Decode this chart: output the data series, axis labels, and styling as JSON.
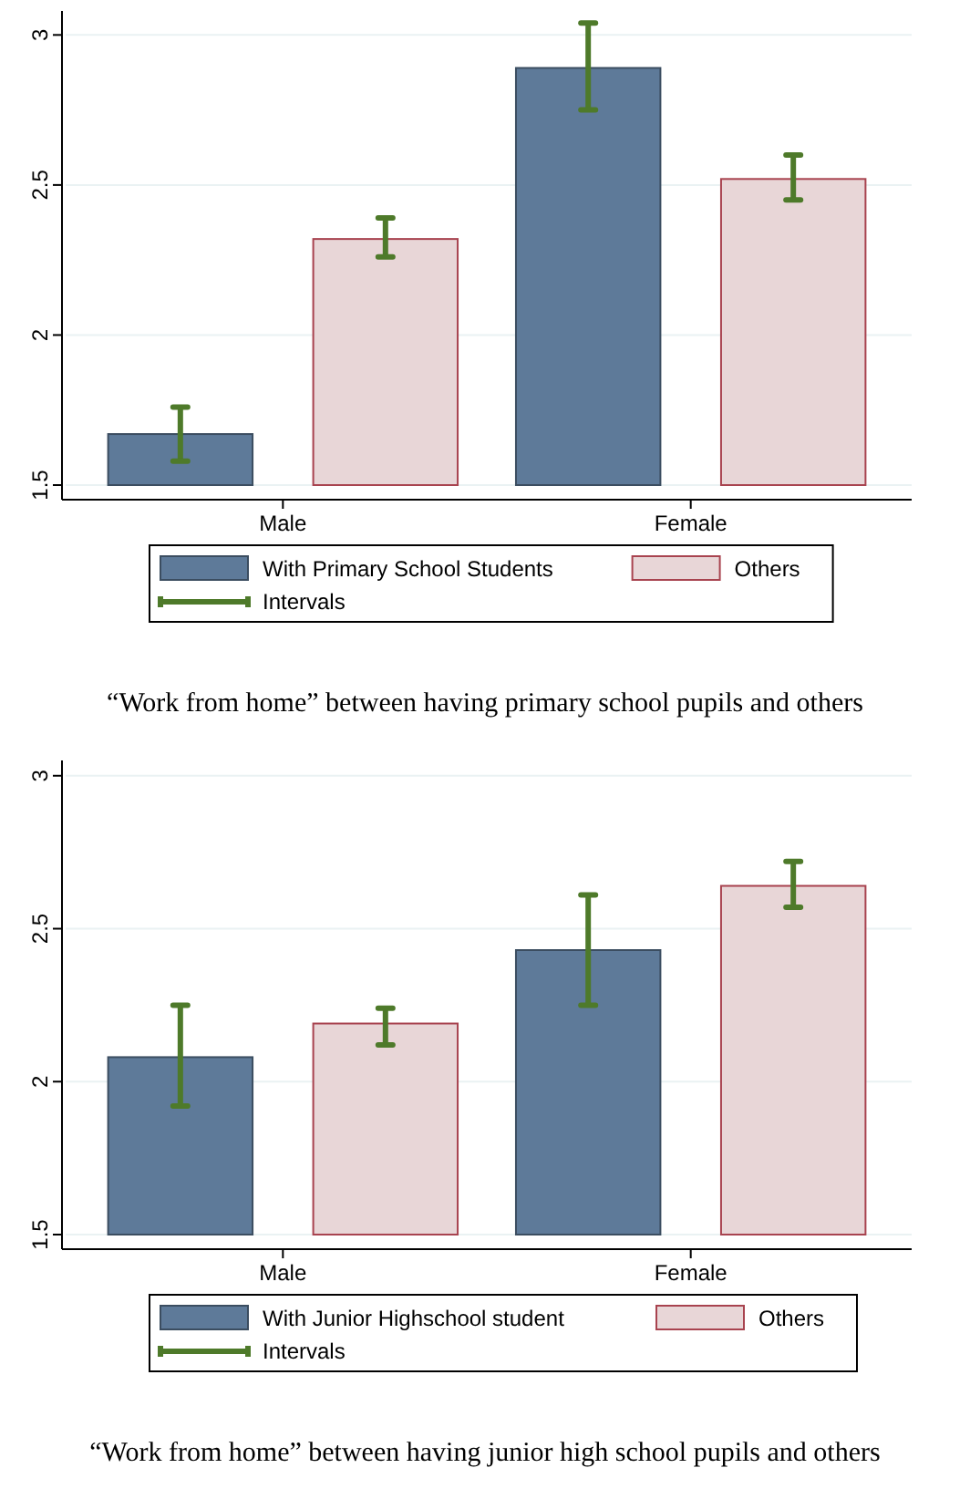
{
  "chart_data": [
    {
      "type": "bar",
      "title": "“Work from home” between having primary school pupils and others",
      "categories": [
        "Male",
        "Female"
      ],
      "series": [
        {
          "name": "With Primary School Students",
          "color": "#5e7a99",
          "values": [
            1.67,
            2.89
          ],
          "errors": [
            [
              1.58,
              1.76
            ],
            [
              2.75,
              3.04
            ]
          ]
        },
        {
          "name": "Others",
          "color": "#e8d6d7",
          "values": [
            2.32,
            2.52
          ],
          "errors": [
            [
              2.26,
              2.39
            ],
            [
              2.45,
              2.6
            ]
          ]
        }
      ],
      "annotations": [
        "Intervals"
      ],
      "ylim": [
        1.5,
        3.08
      ],
      "yticks": [
        1.5,
        2,
        2.5,
        3
      ],
      "grid": "y",
      "legend": "bottom"
    },
    {
      "type": "bar",
      "title": "“Work from home” between having junior high school pupils and others",
      "categories": [
        "Male",
        "Female"
      ],
      "series": [
        {
          "name": "With Junior Highschool student",
          "color": "#5e7a99",
          "values": [
            2.08,
            2.43
          ],
          "errors": [
            [
              1.92,
              2.25
            ],
            [
              2.25,
              2.61
            ]
          ]
        },
        {
          "name": "Others",
          "color": "#e8d6d7",
          "values": [
            2.19,
            2.64
          ],
          "errors": [
            [
              2.12,
              2.24
            ],
            [
              2.57,
              2.72
            ]
          ]
        }
      ],
      "annotations": [
        "Intervals"
      ],
      "ylim": [
        1.5,
        3.05
      ],
      "yticks": [
        1.5,
        2,
        2.5,
        3
      ],
      "grid": "y",
      "legend": "bottom"
    }
  ]
}
